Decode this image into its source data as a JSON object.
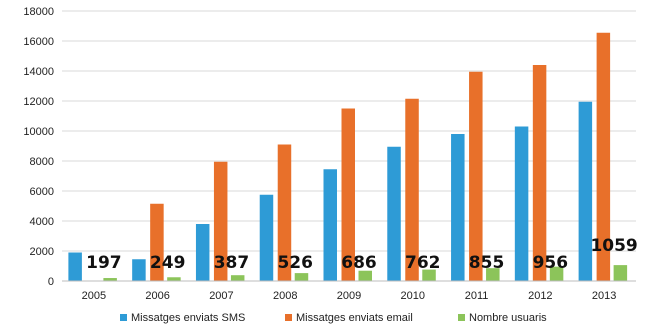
{
  "chart_data": {
    "type": "bar",
    "categories": [
      "2005",
      "2006",
      "2007",
      "2008",
      "2009",
      "2010",
      "2011",
      "2012",
      "2013"
    ],
    "series": [
      {
        "name": "Missatges enviats SMS",
        "color": "#2e9bd6",
        "values": [
          1900,
          1450,
          3800,
          5750,
          7450,
          8950,
          9800,
          10300,
          11950
        ]
      },
      {
        "name": "Missatges enviats email",
        "color": "#e8702a",
        "values": [
          0,
          5150,
          7950,
          9100,
          11500,
          12150,
          13950,
          14400,
          16550
        ]
      },
      {
        "name": "Nombre usuaris",
        "color": "#8cc45a",
        "values": [
          197,
          249,
          387,
          526,
          686,
          762,
          855,
          956,
          1059
        ]
      }
    ],
    "data_labels": [
      "197",
      "249",
      "387",
      "526",
      "686",
      "762",
      "855",
      "956",
      "1059"
    ],
    "yticks": [
      "0",
      "2000",
      "4000",
      "6000",
      "8000",
      "10000",
      "12000",
      "14000",
      "16000",
      "18000"
    ],
    "ylim": [
      0,
      18000
    ],
    "grid": true,
    "legend_position": "bottom",
    "title": "",
    "xlabel": "",
    "ylabel": ""
  }
}
